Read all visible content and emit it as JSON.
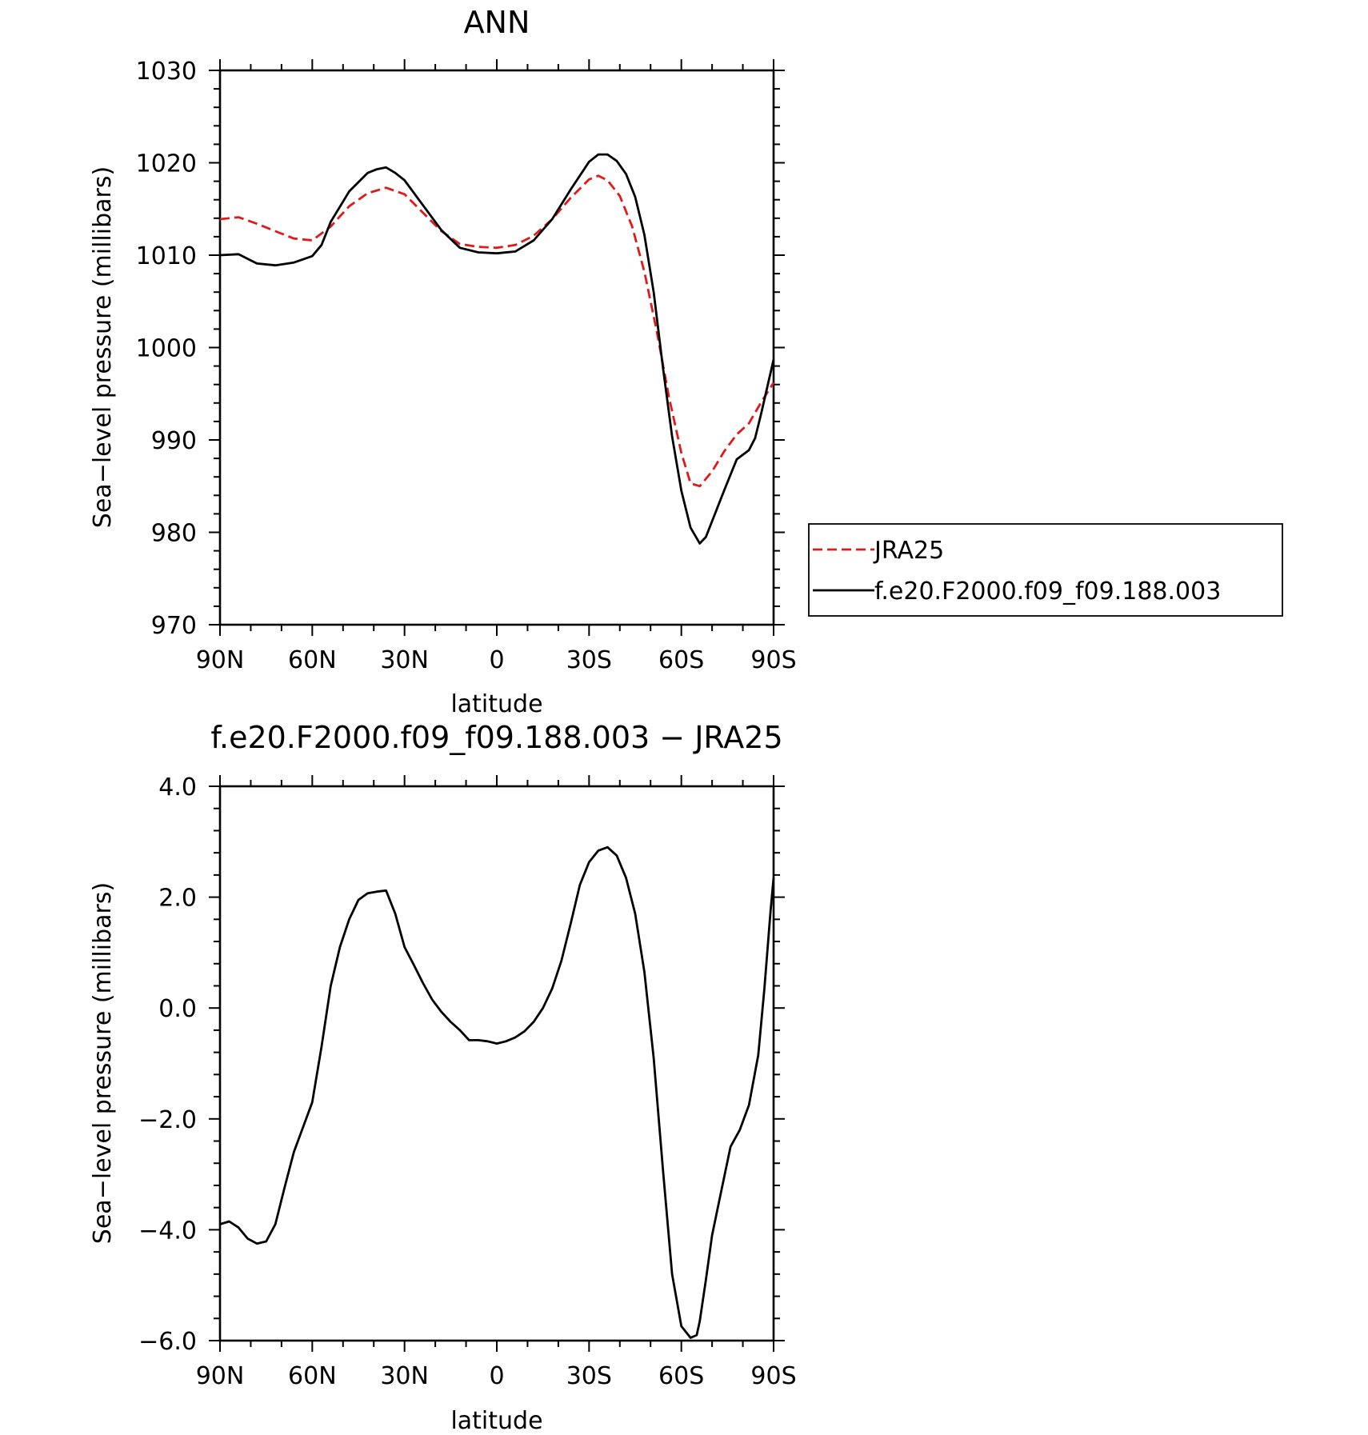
{
  "chart_data": [
    {
      "type": "line",
      "title": "ANN",
      "xlabel": "latitude",
      "ylabel": "Sea−level pressure (millibars)",
      "xlim": [
        90,
        -90
      ],
      "ylim": [
        970,
        1030
      ],
      "x_ticks": [
        90,
        60,
        30,
        0,
        -30,
        -60,
        -90
      ],
      "x_tick_labels": [
        "90N",
        "60N",
        "30N",
        "0",
        "30S",
        "60S",
        "90S"
      ],
      "y_ticks": [
        970,
        980,
        990,
        1000,
        1010,
        1020,
        1030
      ],
      "y_tick_labels": [
        "970",
        "980",
        "990",
        "1000",
        "1010",
        "1020",
        "1030"
      ],
      "legend_position": "right",
      "series": [
        {
          "name": "JRA25",
          "color": "#e0191a",
          "dash": true,
          "x": [
            90,
            84,
            78,
            72,
            66,
            60,
            54,
            48,
            42,
            36,
            30,
            24,
            18,
            12,
            6,
            0,
            -6,
            -12,
            -18,
            -24,
            -30,
            -33,
            -36,
            -40,
            -44,
            -48,
            -52,
            -56,
            -60,
            -63,
            -66,
            -70,
            -74,
            -78,
            -82,
            -86,
            -90
          ],
          "values": [
            1013.9,
            1014.1,
            1013.4,
            1012.6,
            1011.8,
            1011.6,
            1013.1,
            1015.3,
            1016.7,
            1017.3,
            1016.6,
            1014.6,
            1012.6,
            1011.2,
            1010.9,
            1010.8,
            1011.1,
            1012.1,
            1013.9,
            1016.2,
            1018.2,
            1018.6,
            1018.1,
            1016.4,
            1013.1,
            1008.2,
            1001.8,
            994.6,
            988.6,
            985.3,
            985.0,
            986.6,
            988.8,
            990.6,
            991.8,
            994.1,
            996.2
          ]
        },
        {
          "name": "f.e20.F2000.f09_f09.188.003",
          "color": "#000000",
          "dash": false,
          "x": [
            90,
            84,
            78,
            72,
            66,
            60,
            57,
            54,
            48,
            42,
            39,
            36,
            33,
            30,
            24,
            18,
            12,
            6,
            0,
            -6,
            -12,
            -18,
            -24,
            -30,
            -33,
            -36,
            -39,
            -42,
            -45,
            -48,
            -51,
            -54,
            -57,
            -60,
            -63,
            -66,
            -68,
            -70,
            -74,
            -78,
            -82,
            -84,
            -86,
            -88,
            -90
          ],
          "values": [
            1010.0,
            1010.1,
            1009.1,
            1008.9,
            1009.2,
            1009.9,
            1011.1,
            1013.6,
            1016.9,
            1018.9,
            1019.3,
            1019.5,
            1018.9,
            1018.1,
            1015.4,
            1012.7,
            1010.8,
            1010.3,
            1010.2,
            1010.4,
            1011.6,
            1013.9,
            1017.1,
            1020.1,
            1020.9,
            1020.9,
            1020.2,
            1018.8,
            1016.3,
            1012.2,
            1006.0,
            997.9,
            990.4,
            984.5,
            980.5,
            978.8,
            979.5,
            981.2,
            984.6,
            987.9,
            988.9,
            990.2,
            992.9,
            995.8,
            998.7
          ]
        }
      ]
    },
    {
      "type": "line",
      "title": "f.e20.F2000.f09_f09.188.003 − JRA25",
      "xlabel": "latitude",
      "ylabel": "Sea−level pressure (millibars)",
      "xlim": [
        90,
        -90
      ],
      "ylim": [
        -6.0,
        4.0
      ],
      "x_ticks": [
        90,
        60,
        30,
        0,
        -30,
        -60,
        -90
      ],
      "x_tick_labels": [
        "90N",
        "60N",
        "30N",
        "0",
        "30S",
        "60S",
        "90S"
      ],
      "y_ticks": [
        -6.0,
        -4.0,
        -2.0,
        0.0,
        2.0,
        4.0
      ],
      "y_tick_labels": [
        "−6.0",
        "−4.0",
        "−2.0",
        "0.0",
        "2.0",
        "4.0"
      ],
      "series": [
        {
          "color": "#000000",
          "dash": false,
          "x": [
            90,
            87,
            84,
            81,
            78,
            75,
            72,
            69,
            66,
            63,
            60,
            57,
            54,
            51,
            48,
            45,
            42,
            39,
            36,
            33,
            30,
            27,
            24,
            21,
            18,
            15,
            12,
            9,
            6,
            3,
            0,
            -3,
            -6,
            -9,
            -12,
            -15,
            -18,
            -21,
            -24,
            -27,
            -30,
            -33,
            -36,
            -39,
            -42,
            -45,
            -48,
            -51,
            -54,
            -57,
            -60,
            -63,
            -65,
            -66,
            -68,
            -70,
            -73,
            -76,
            -79,
            -82,
            -85,
            -87,
            -89,
            -90
          ],
          "values": [
            -3.9,
            -3.85,
            -3.96,
            -4.16,
            -4.25,
            -4.21,
            -3.9,
            -3.24,
            -2.6,
            -2.15,
            -1.7,
            -0.7,
            0.4,
            1.1,
            1.6,
            1.95,
            2.07,
            2.1,
            2.12,
            1.7,
            1.1,
            0.78,
            0.45,
            0.15,
            -0.07,
            -0.25,
            -0.4,
            -0.58,
            -0.58,
            -0.6,
            -0.64,
            -0.6,
            -0.53,
            -0.42,
            -0.25,
            0.0,
            0.35,
            0.85,
            1.52,
            2.22,
            2.63,
            2.84,
            2.9,
            2.75,
            2.35,
            1.7,
            0.65,
            -0.9,
            -2.9,
            -4.8,
            -5.74,
            -5.95,
            -5.9,
            -5.65,
            -4.9,
            -4.1,
            -3.3,
            -2.5,
            -2.2,
            -1.75,
            -0.85,
            0.35,
            1.75,
            2.35
          ]
        }
      ]
    }
  ]
}
